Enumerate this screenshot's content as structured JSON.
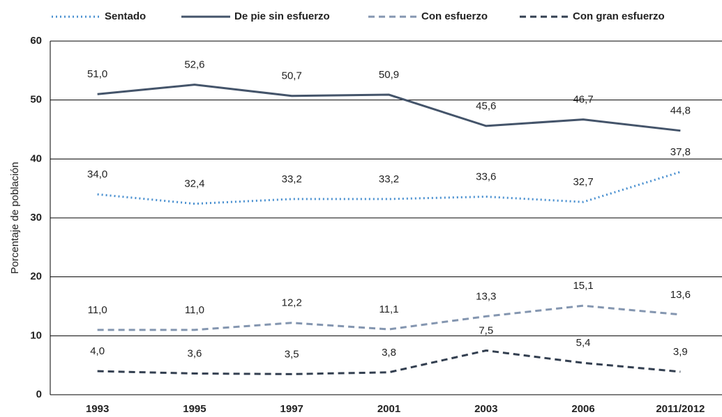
{
  "chart_data": {
    "type": "line",
    "y_label": "Porcentaje de población",
    "categories": [
      "1993",
      "1995",
      "1997",
      "2001",
      "2003",
      "2006",
      "2011/2012"
    ],
    "series": [
      {
        "name": "Sentado",
        "color": "#4a90d0",
        "dash": "dotted",
        "values": [
          34.0,
          32.4,
          33.2,
          33.2,
          33.6,
          32.7,
          37.8
        ],
        "value_labels": [
          "34,0",
          "32,4",
          "33,2",
          "33,2",
          "33,6",
          "32,7",
          "37,8"
        ]
      },
      {
        "name": "De pie sin esfuerzo",
        "color": "#44546a",
        "dash": "solid",
        "values": [
          51.0,
          52.6,
          50.7,
          50.9,
          45.6,
          46.7,
          44.8
        ],
        "value_labels": [
          "51,0",
          "52,6",
          "50,7",
          "50,9",
          "45,6",
          "46,7",
          "44,8"
        ]
      },
      {
        "name": "Con esfuerzo",
        "color": "#8496b0",
        "dash": "dashed",
        "values": [
          11.0,
          11.0,
          12.2,
          11.1,
          13.3,
          15.1,
          13.6
        ],
        "value_labels": [
          "11,0",
          "11,0",
          "12,2",
          "11,1",
          "13,3",
          "15,1",
          "13,6"
        ]
      },
      {
        "name": "Con gran esfuerzo",
        "color": "#333f50",
        "dash": "dashed",
        "values": [
          4.0,
          3.6,
          3.5,
          3.8,
          7.5,
          5.4,
          3.9
        ],
        "value_labels": [
          "4,0",
          "3,6",
          "3,5",
          "3,8",
          "7,5",
          "5,4",
          "3,9"
        ]
      }
    ],
    "ylim": [
      0,
      60
    ],
    "yticks": [
      0,
      10,
      20,
      30,
      40,
      50,
      60
    ],
    "grid": true,
    "legend": "top"
  }
}
